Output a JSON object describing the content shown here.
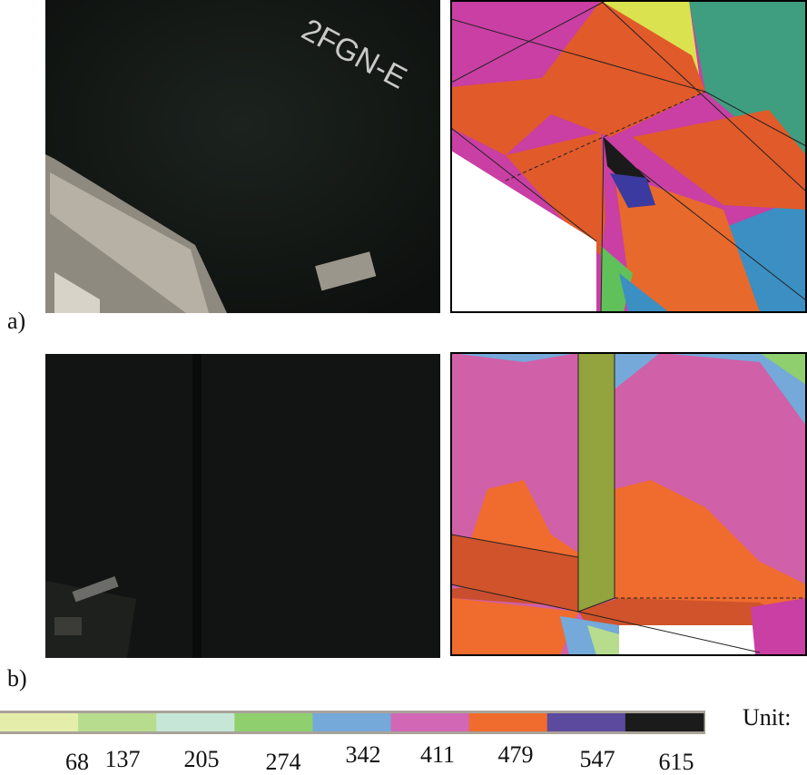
{
  "panels": [
    {
      "label": "a)",
      "photo_text": "2FGN-E"
    },
    {
      "label": "b)"
    }
  ],
  "legend": {
    "colors": [
      "#e4eeaa",
      "#b8dc8e",
      "#c6e7d8",
      "#8fcf6e",
      "#74a9d9",
      "#d267b5",
      "#f06b2e",
      "#5c4a9e",
      "#1b1b1b"
    ],
    "ticks": [
      68,
      137,
      205,
      274,
      342,
      411,
      479,
      547,
      615
    ],
    "unit": "Unit:"
  }
}
